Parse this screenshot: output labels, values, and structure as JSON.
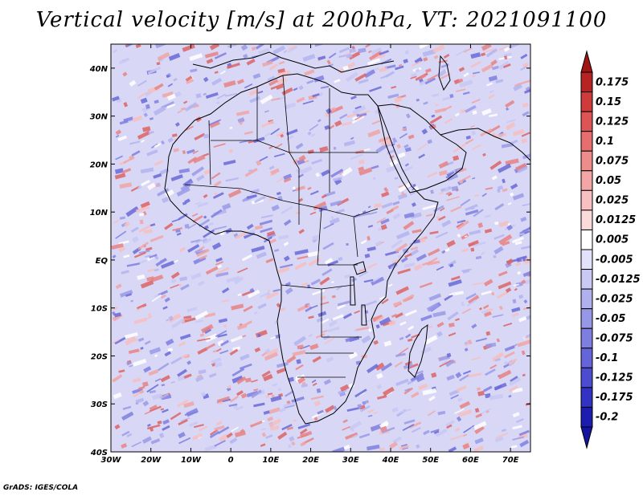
{
  "title": "Vertical velocity [m/s] at 200hPa, VT: 2021091100",
  "footer": "GrADS: IGES/COLA",
  "map": {
    "region": "Africa",
    "lon_range": [
      -30,
      75
    ],
    "lat_range": [
      -40,
      45
    ],
    "lon_ticks": [
      {
        "value": -30,
        "label": "30W"
      },
      {
        "value": -20,
        "label": "20W"
      },
      {
        "value": -10,
        "label": "10W"
      },
      {
        "value": 0,
        "label": "0"
      },
      {
        "value": 10,
        "label": "10E"
      },
      {
        "value": 20,
        "label": "20E"
      },
      {
        "value": 30,
        "label": "30E"
      },
      {
        "value": 40,
        "label": "40E"
      },
      {
        "value": 50,
        "label": "50E"
      },
      {
        "value": 60,
        "label": "60E"
      },
      {
        "value": 70,
        "label": "70E"
      }
    ],
    "lat_ticks": [
      {
        "value": 40,
        "label": "40N"
      },
      {
        "value": 30,
        "label": "30N"
      },
      {
        "value": 20,
        "label": "20N"
      },
      {
        "value": 10,
        "label": "10N"
      },
      {
        "value": 0,
        "label": "EQ"
      },
      {
        "value": -10,
        "label": "10S"
      },
      {
        "value": -20,
        "label": "20S"
      },
      {
        "value": -30,
        "label": "30S"
      },
      {
        "value": -40,
        "label": "40S"
      }
    ]
  },
  "colorbar": {
    "levels": [
      {
        "label": "0.175",
        "color": "#b52323"
      },
      {
        "label": "0.15",
        "color": "#cf3a3a"
      },
      {
        "label": "0.125",
        "color": "#de5454"
      },
      {
        "label": "0.1",
        "color": "#e66e6e"
      },
      {
        "label": "0.075",
        "color": "#ee8b8b"
      },
      {
        "label": "0.05",
        "color": "#f4a5a5"
      },
      {
        "label": "0.025",
        "color": "#f8c0c0"
      },
      {
        "label": "0.0125",
        "color": "#fbdada"
      },
      {
        "label": "0.005",
        "color": "#ffffff"
      },
      {
        "label": "-0.005",
        "color": "#e2e2fa"
      },
      {
        "label": "-0.0125",
        "color": "#c9c9f4"
      },
      {
        "label": "-0.025",
        "color": "#b0b0ee"
      },
      {
        "label": "-0.05",
        "color": "#9797e8"
      },
      {
        "label": "-0.075",
        "color": "#7e7ee1"
      },
      {
        "label": "-0.1",
        "color": "#6565d9"
      },
      {
        "label": "-0.125",
        "color": "#4c4cd0"
      },
      {
        "label": "-0.175",
        "color": "#3232c4"
      },
      {
        "label": "-0.2",
        "color": "#1c1cb0"
      }
    ],
    "top_arrow_color": "#a01414",
    "bottom_arrow_color": "#1414a0"
  }
}
